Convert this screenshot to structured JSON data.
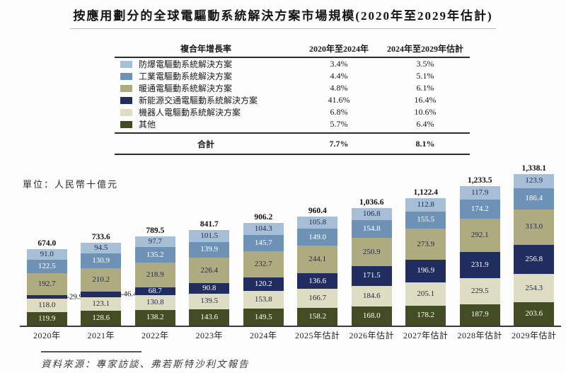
{
  "title": "按應用劃分的全球電驅動系統解決方案市場規模(2020年至2029年估計)",
  "unit_label": "單位：人民幣十億元",
  "source": "資料來源：專家訪談、弗若斯特沙利文報告",
  "table": {
    "header": {
      "col_label": "複合年增長率",
      "col_2020_2024": "2020年至2024年",
      "col_2024_2029": "2024年至2029年估計"
    },
    "rows": [
      {
        "label": "防爆電驅動系統解決方案",
        "cagr_2020_2024": "3.4%",
        "cagr_2024_2029": "3.5%",
        "color": "#a7bfd6"
      },
      {
        "label": "工業電驅動系統解決方案",
        "cagr_2020_2024": "4.4%",
        "cagr_2024_2029": "5.1%",
        "color": "#6e92b6"
      },
      {
        "label": "暖通電驅動系統解決方案",
        "cagr_2020_2024": "4.8%",
        "cagr_2024_2029": "6.1%",
        "color": "#aeab80"
      },
      {
        "label": "新能源交通電驅動系統解決方案",
        "cagr_2020_2024": "41.6%",
        "cagr_2024_2029": "16.4%",
        "color": "#212c5f"
      },
      {
        "label": "機器人電驅動系統解決方案",
        "cagr_2020_2024": "6.8%",
        "cagr_2024_2029": "10.6%",
        "color": "#dedcc2"
      },
      {
        "label": "其他",
        "cagr_2020_2024": "5.7%",
        "cagr_2024_2029": "6.4%",
        "color": "#434c22"
      }
    ],
    "total": {
      "label": "合計",
      "cagr_2020_2024": "7.7%",
      "cagr_2024_2029": "8.1%"
    }
  },
  "chart_data": {
    "type": "bar",
    "stacked": true,
    "title": "按應用劃分的全球電驅動系統解決方案市場規模(2020年至2029年估計)",
    "ylabel": "單位：人民幣十億元",
    "xlabel": "",
    "grid": false,
    "legend_position": "table-top-left",
    "categories": [
      "2020年",
      "2021年",
      "2022年",
      "2023年",
      "2024年",
      "2025年估計",
      "2026年估計",
      "2027年估計",
      "2028年估計",
      "2029年估計"
    ],
    "series_order": "top-to-bottom-of-stack",
    "series": [
      {
        "name": "防爆電驅動系統解決方案",
        "color": "#a7bfd6",
        "label_color": "#1e2949",
        "values": [
          91.0,
          94.5,
          97.7,
          101.5,
          104.3,
          105.8,
          106.8,
          112.8,
          117.9,
          123.9
        ]
      },
      {
        "name": "工業電驅動系統解決方案",
        "color": "#6e92b6",
        "label_color": "#ffffff",
        "values": [
          122.5,
          130.9,
          135.2,
          139.9,
          145.7,
          149.0,
          154.8,
          155.5,
          174.2,
          186.4
        ]
      },
      {
        "name": "暖通電驅動系統解決方案",
        "color": "#aeab80",
        "label_color": "#1e2949",
        "values": [
          192.7,
          210.2,
          218.9,
          226.4,
          232.7,
          244.1,
          250.9,
          273.9,
          292.1,
          313.0
        ]
      },
      {
        "name": "新能源交通電驅動系統解決方案",
        "color": "#212c5f",
        "label_color": "#ffffff",
        "values": [
          29.9,
          46.4,
          68.7,
          90.8,
          120.2,
          136.6,
          171.5,
          196.9,
          231.9,
          256.8
        ]
      },
      {
        "name": "機器人電驅動系統解決方案",
        "color": "#dedcc2",
        "label_color": "#1e2949",
        "values": [
          118.0,
          123.1,
          130.8,
          139.5,
          153.8,
          166.7,
          184.6,
          205.1,
          229.5,
          254.3
        ]
      },
      {
        "name": "其他",
        "color": "#434c22",
        "label_color": "#ffffff",
        "values": [
          119.9,
          128.6,
          138.2,
          143.6,
          149.5,
          158.2,
          168.0,
          178.2,
          187.9,
          203.6
        ]
      }
    ],
    "totals": [
      674.0,
      733.6,
      789.5,
      841.7,
      906.2,
      960.4,
      1036.6,
      1122.4,
      1233.5,
      1338.1
    ],
    "total_labels": [
      "674.0",
      "733.6",
      "789.5",
      "841.7",
      "906.2",
      "960.4",
      "1,036.6",
      "1,122.4",
      "1,233.5",
      "1,338.1"
    ],
    "callouts": [
      {
        "category_index": 0,
        "series_index": 3,
        "text": "-29.9"
      },
      {
        "category_index": 1,
        "series_index": 3,
        "text": "-46.4"
      }
    ],
    "ylim": [
      0,
      1400
    ]
  }
}
